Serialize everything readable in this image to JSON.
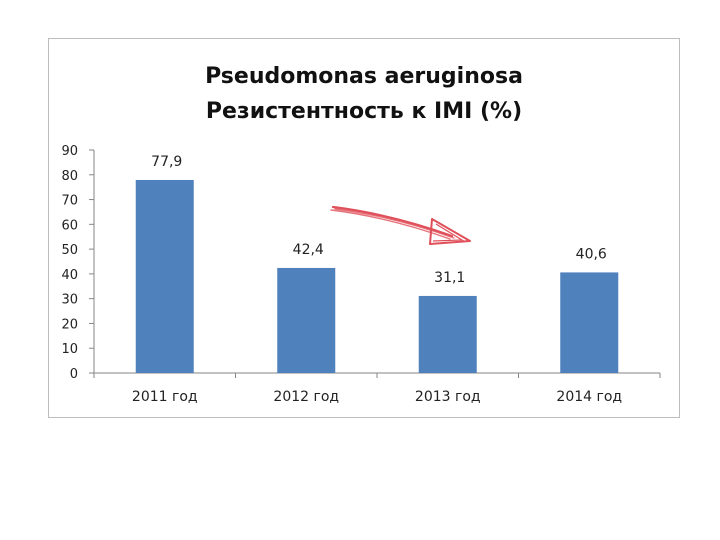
{
  "chart_data": {
    "type": "bar",
    "title_lines": [
      "Pseudomonas aeruginosa",
      "Резистентность к IMI (%)"
    ],
    "categories": [
      "2011 год",
      "2012 год",
      "2013 год",
      "2014 год"
    ],
    "values": [
      77.9,
      42.4,
      31.1,
      40.6
    ],
    "data_labels": [
      "77,9",
      "42,4",
      "31,1",
      "40,6"
    ],
    "yticks": [
      "0",
      "10",
      "20",
      "30",
      "40",
      "50",
      "60",
      "70",
      "80",
      "90"
    ],
    "ylim": [
      0,
      90
    ],
    "grid": false,
    "bar_color": "#4f81bd",
    "annotation_arrow_color": "#e0505a"
  }
}
